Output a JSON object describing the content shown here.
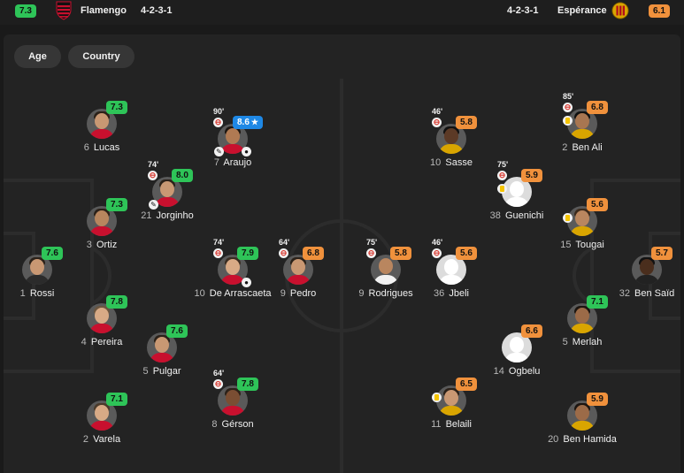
{
  "header": {
    "home": {
      "rating": "7.3",
      "name": "Flamengo",
      "formation": "4-2-3-1"
    },
    "away": {
      "rating": "6.1",
      "name": "Espérance",
      "formation": "4-2-3-1"
    }
  },
  "filters": [
    {
      "label": "Age"
    },
    {
      "label": "Country"
    }
  ],
  "colors": {
    "rating_green": "#2ec458",
    "rating_orange": "#f0913c",
    "rating_blue": "#1e88e5",
    "home_kit": "#c8102e",
    "away_kit": "#d9a500"
  },
  "players": [
    {
      "id": "lucas",
      "team": "home",
      "number": "6",
      "name": "Lucas",
      "rating": "7.3",
      "color": "green"
    },
    {
      "id": "ortiz",
      "team": "home",
      "number": "3",
      "name": "Ortiz",
      "rating": "7.3",
      "color": "green"
    },
    {
      "id": "rossi",
      "team": "home",
      "number": "1",
      "name": "Rossi",
      "rating": "7.6",
      "color": "green"
    },
    {
      "id": "pereira",
      "team": "home",
      "number": "4",
      "name": "Pereira",
      "rating": "7.8",
      "color": "green"
    },
    {
      "id": "varela",
      "team": "home",
      "number": "2",
      "name": "Varela",
      "rating": "7.1",
      "color": "green"
    },
    {
      "id": "jorginho",
      "team": "home",
      "number": "21",
      "name": "Jorginho",
      "rating": "8.0",
      "color": "green",
      "sub": "74'",
      "assist": true
    },
    {
      "id": "pulgar",
      "team": "home",
      "number": "5",
      "name": "Pulgar",
      "rating": "7.6",
      "color": "green"
    },
    {
      "id": "araujo",
      "team": "home",
      "number": "7",
      "name": "Araujo",
      "rating": "8.6",
      "color": "blue",
      "star": true,
      "sub": "90'",
      "assist": true,
      "goal": true
    },
    {
      "id": "arrascaeta",
      "team": "home",
      "number": "10",
      "name": "De Arrascaeta",
      "rating": "7.9",
      "color": "green",
      "sub": "74'",
      "goal": true
    },
    {
      "id": "gerson",
      "team": "home",
      "number": "8",
      "name": "Gérson",
      "rating": "7.8",
      "color": "green",
      "sub": "64'"
    },
    {
      "id": "pedro",
      "team": "home",
      "number": "9",
      "name": "Pedro",
      "rating": "6.8",
      "color": "orange",
      "sub": "64'"
    },
    {
      "id": "rodrigues",
      "team": "away",
      "number": "9",
      "name": "Rodrigues",
      "rating": "5.8",
      "color": "orange",
      "sub": "75'"
    },
    {
      "id": "jbeli",
      "team": "away",
      "number": "36",
      "name": "Jbeli",
      "rating": "5.6",
      "color": "orange",
      "sub": "46'",
      "ghost": true
    },
    {
      "id": "sasse",
      "team": "away",
      "number": "10",
      "name": "Sasse",
      "rating": "5.8",
      "color": "orange",
      "sub": "46'"
    },
    {
      "id": "guenichi",
      "team": "away",
      "number": "38",
      "name": "Guenichi",
      "rating": "5.9",
      "color": "orange",
      "sub": "75'",
      "yellow": true,
      "ghost": true
    },
    {
      "id": "ogbelu",
      "team": "away",
      "number": "14",
      "name": "Ogbelu",
      "rating": "6.6",
      "color": "orange",
      "ghost": true
    },
    {
      "id": "belaili",
      "team": "away",
      "number": "11",
      "name": "Belaili",
      "rating": "6.5",
      "color": "orange",
      "yellow": true
    },
    {
      "id": "benali",
      "team": "away",
      "number": "2",
      "name": "Ben Ali",
      "rating": "6.8",
      "color": "orange",
      "sub": "85'",
      "yellow": true
    },
    {
      "id": "tougai",
      "team": "away",
      "number": "15",
      "name": "Tougai",
      "rating": "5.6",
      "color": "orange",
      "yellow": true
    },
    {
      "id": "merlah",
      "team": "away",
      "number": "5",
      "name": "Merlah",
      "rating": "7.1",
      "color": "green"
    },
    {
      "id": "benhamida",
      "team": "away",
      "number": "20",
      "name": "Ben Hamida",
      "rating": "5.9",
      "color": "orange"
    },
    {
      "id": "bensaid",
      "team": "away",
      "number": "32",
      "name": "Ben Saïd",
      "rating": "5.7",
      "color": "orange"
    }
  ]
}
